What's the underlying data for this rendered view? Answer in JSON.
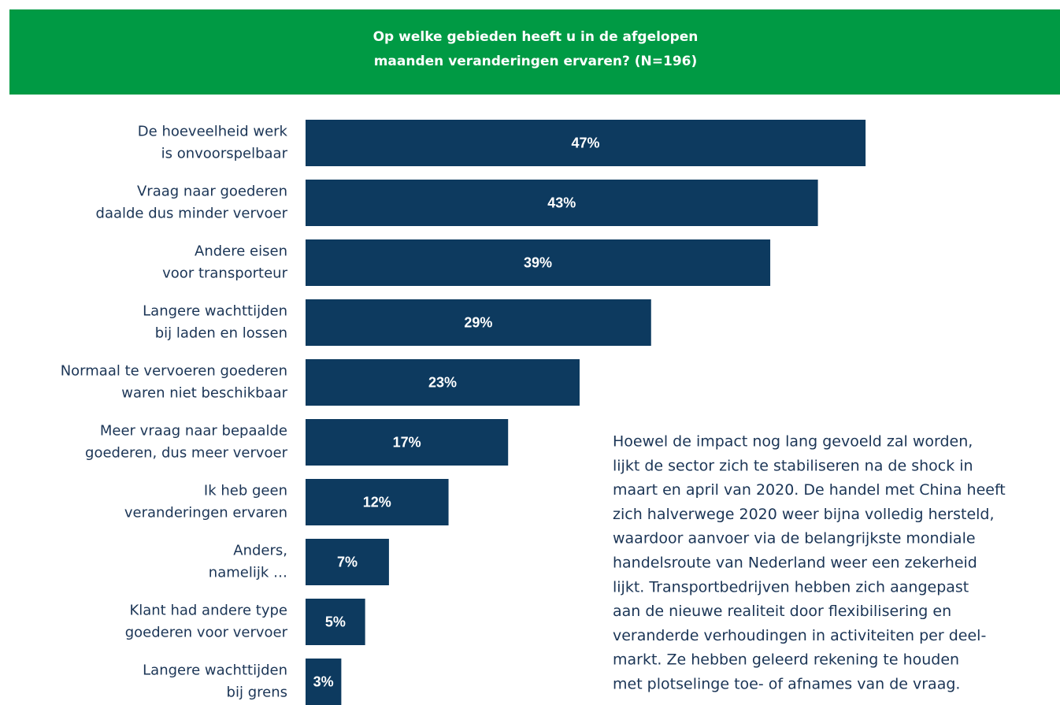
{
  "chart_data": {
    "type": "bar",
    "orientation": "horizontal",
    "title": [
      "Op welke gebieden heeft u in de afgelopen",
      "maanden veranderingen ervaren? (N=196)"
    ],
    "categories": [
      [
        "De hoeveelheid werk",
        "is onvoorspelbaar"
      ],
      [
        "Vraag naar goederen",
        "daalde dus minder vervoer"
      ],
      [
        "Andere eisen",
        "voor transporteur"
      ],
      [
        "Langere wachttijden",
        "bij laden en lossen"
      ],
      [
        "Normaal te vervoeren goederen",
        "waren niet beschikbaar"
      ],
      [
        "Meer vraag naar bepaalde",
        "goederen, dus meer vervoer"
      ],
      [
        "Ik heb geen",
        "veranderingen ervaren"
      ],
      [
        "Anders,",
        "namelijk …"
      ],
      [
        "Klant had andere type",
        "goederen voor vervoer"
      ],
      [
        "Langere wachttijden",
        "bij grens"
      ]
    ],
    "values": [
      47,
      43,
      39,
      29,
      23,
      17,
      12,
      7,
      5,
      3
    ],
    "value_labels": [
      "47%",
      "43%",
      "39%",
      "29%",
      "23%",
      "17%",
      "12%",
      "7%",
      "5%",
      "3%"
    ],
    "color": "#0d3a5f",
    "header_color": "#009a44",
    "annotation": [
      "Hoewel de impact nog lang gevoeld zal worden,",
      "lijkt de sector zich te stabiliseren na de shock in",
      "maart en april van 2020. De handel met China heeft",
      "zich halverwege 2020 weer bijna volledig hersteld,",
      "waardoor aanvoer via de belangrijkste mondiale",
      "handelsroute van Nederland weer een zekerheid",
      "lijkt. Transportbedrijven hebben zich aangepast",
      "aan de nieuwe realiteit door flexibilisering en",
      "veranderde verhoudingen in activiteiten per deel-",
      "markt. Ze hebben geleerd rekening te houden",
      "met plotselinge toe- of afnames van de vraag."
    ]
  }
}
